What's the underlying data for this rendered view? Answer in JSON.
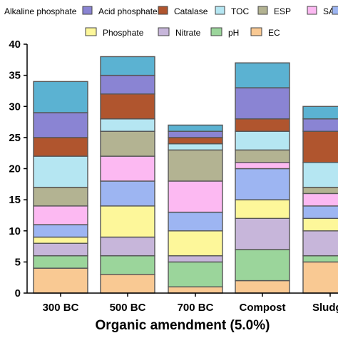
{
  "chart_data": {
    "type": "bar",
    "stacked": true,
    "title": "",
    "xlabel": "Organic amendment (5.0%)",
    "ylabel": "",
    "ylim": [
      0,
      40
    ],
    "yticks": [
      0,
      5,
      10,
      15,
      20,
      25,
      30,
      35,
      40
    ],
    "grid": false,
    "legend_position": "top",
    "categories": [
      "300 BC",
      "500 BC",
      "700 BC",
      "Compost",
      "Sludge"
    ],
    "series": [
      {
        "name": "EC",
        "color": "#f9c993",
        "values": [
          4,
          3,
          1,
          2,
          5
        ]
      },
      {
        "name": "pH",
        "color": "#9bd59b",
        "values": [
          2,
          3,
          4,
          5,
          1
        ]
      },
      {
        "name": "Nitrate",
        "color": "#c7b6da",
        "values": [
          2,
          3,
          1,
          5,
          4
        ]
      },
      {
        "name": "Phosphate",
        "color": "#fdf79a",
        "values": [
          1,
          5,
          4,
          3,
          2
        ]
      },
      {
        "name": "",
        "color": "#9db5f2",
        "values": [
          2,
          4,
          3,
          5,
          2
        ]
      },
      {
        "name": "SAR",
        "color": "#fcb9f2",
        "values": [
          3,
          4,
          5,
          1,
          2
        ]
      },
      {
        "name": "ESP",
        "color": "#b3b392",
        "values": [
          3,
          4,
          5,
          2,
          1
        ]
      },
      {
        "name": "TOC",
        "color": "#b5e6f2",
        "values": [
          5,
          2,
          1,
          3,
          4
        ]
      },
      {
        "name": "Catalase",
        "color": "#b0552e",
        "values": [
          3,
          4,
          1,
          2,
          5
        ]
      },
      {
        "name": "Acid phosphate",
        "color": "#8a84d3",
        "values": [
          4,
          3,
          1,
          5,
          2
        ]
      },
      {
        "name": "Alkaline phosphate",
        "color": "#5bb2d2",
        "values": [
          5,
          3,
          1,
          4,
          2
        ]
      }
    ],
    "legend_rows": [
      [
        {
          "label": "Alkaline phosphate",
          "color": ""
        },
        {
          "label": "Acid phosphate",
          "color": "#8a84d3"
        },
        {
          "label": "Catalase",
          "color": "#b0552e"
        },
        {
          "label": "TOC",
          "color": "#b5e6f2"
        },
        {
          "label": "ESP",
          "color": "#b3b392"
        },
        {
          "label": "SAR",
          "color": "#fcb9f2"
        },
        {
          "label": "",
          "color": "#9db5f2"
        }
      ],
      [
        {
          "label": "Phosphate",
          "color": "#fdf79a"
        },
        {
          "label": "Nitrate",
          "color": "#c7b6da"
        },
        {
          "label": "pH",
          "color": "#9bd59b"
        },
        {
          "label": "EC",
          "color": "#f9c993"
        }
      ]
    ]
  }
}
